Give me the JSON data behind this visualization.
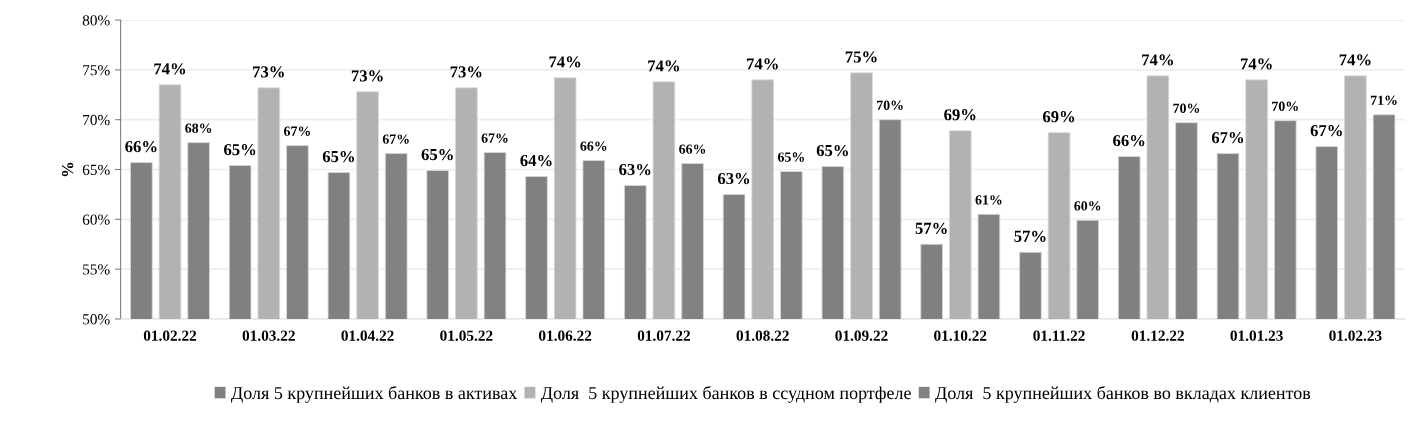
{
  "chart_data": {
    "type": "bar",
    "ylabel": "%",
    "categories": [
      "01.02.22",
      "01.03.22",
      "01.04.22",
      "01.05.22",
      "01.06.22",
      "01.07.22",
      "01.08.22",
      "01.09.22",
      "01.10.22",
      "01.11.22",
      "01.12.22",
      "01.01.23",
      "01.02.23"
    ],
    "series": [
      {
        "name": "Доля 5 крупнейших банков в активах",
        "color": "#808080",
        "values": [
          65.7,
          65.4,
          64.7,
          64.9,
          64.3,
          63.4,
          62.5,
          65.3,
          57.5,
          56.7,
          66.3,
          66.6,
          67.3
        ],
        "value_labels": [
          "66%",
          "65%",
          "65%",
          "65%",
          "64%",
          "63%",
          "63%",
          "65%",
          "57%",
          "57%",
          "66%",
          "67%",
          "67%"
        ]
      },
      {
        "name": "Доля  5 крупнейших банков в ссудном портфеле",
        "color": "#b2b2b2",
        "values": [
          73.5,
          73.2,
          72.8,
          73.2,
          74.2,
          73.8,
          74.0,
          74.7,
          68.9,
          68.7,
          74.4,
          74.0,
          74.4
        ],
        "value_labels": [
          "74%",
          "73%",
          "73%",
          "73%",
          "74%",
          "74%",
          "74%",
          "75%",
          "69%",
          "69%",
          "74%",
          "74%",
          "74%"
        ]
      },
      {
        "name": "Доля  5 крупнейших банков во вкладах клиентов",
        "color": "#828282",
        "values": [
          67.7,
          67.4,
          66.6,
          66.7,
          65.9,
          65.6,
          64.8,
          70.0,
          60.5,
          59.9,
          69.7,
          69.9,
          70.5
        ],
        "value_labels": [
          "68%",
          "67%",
          "67%",
          "67%",
          "66%",
          "66%",
          "65%",
          "70%",
          "61%",
          "60%",
          "70%",
          "70%",
          "71%"
        ]
      }
    ],
    "ylim": [
      50,
      80
    ],
    "yticks": [
      {
        "value": 50,
        "label": "50%"
      },
      {
        "value": 55,
        "label": "55%"
      },
      {
        "value": 60,
        "label": "60%"
      },
      {
        "value": 65,
        "label": "65%"
      },
      {
        "value": 70,
        "label": "70%"
      },
      {
        "value": 75,
        "label": "75%"
      },
      {
        "value": 80,
        "label": "80%"
      }
    ],
    "grid": "y",
    "legend": "bottom"
  }
}
